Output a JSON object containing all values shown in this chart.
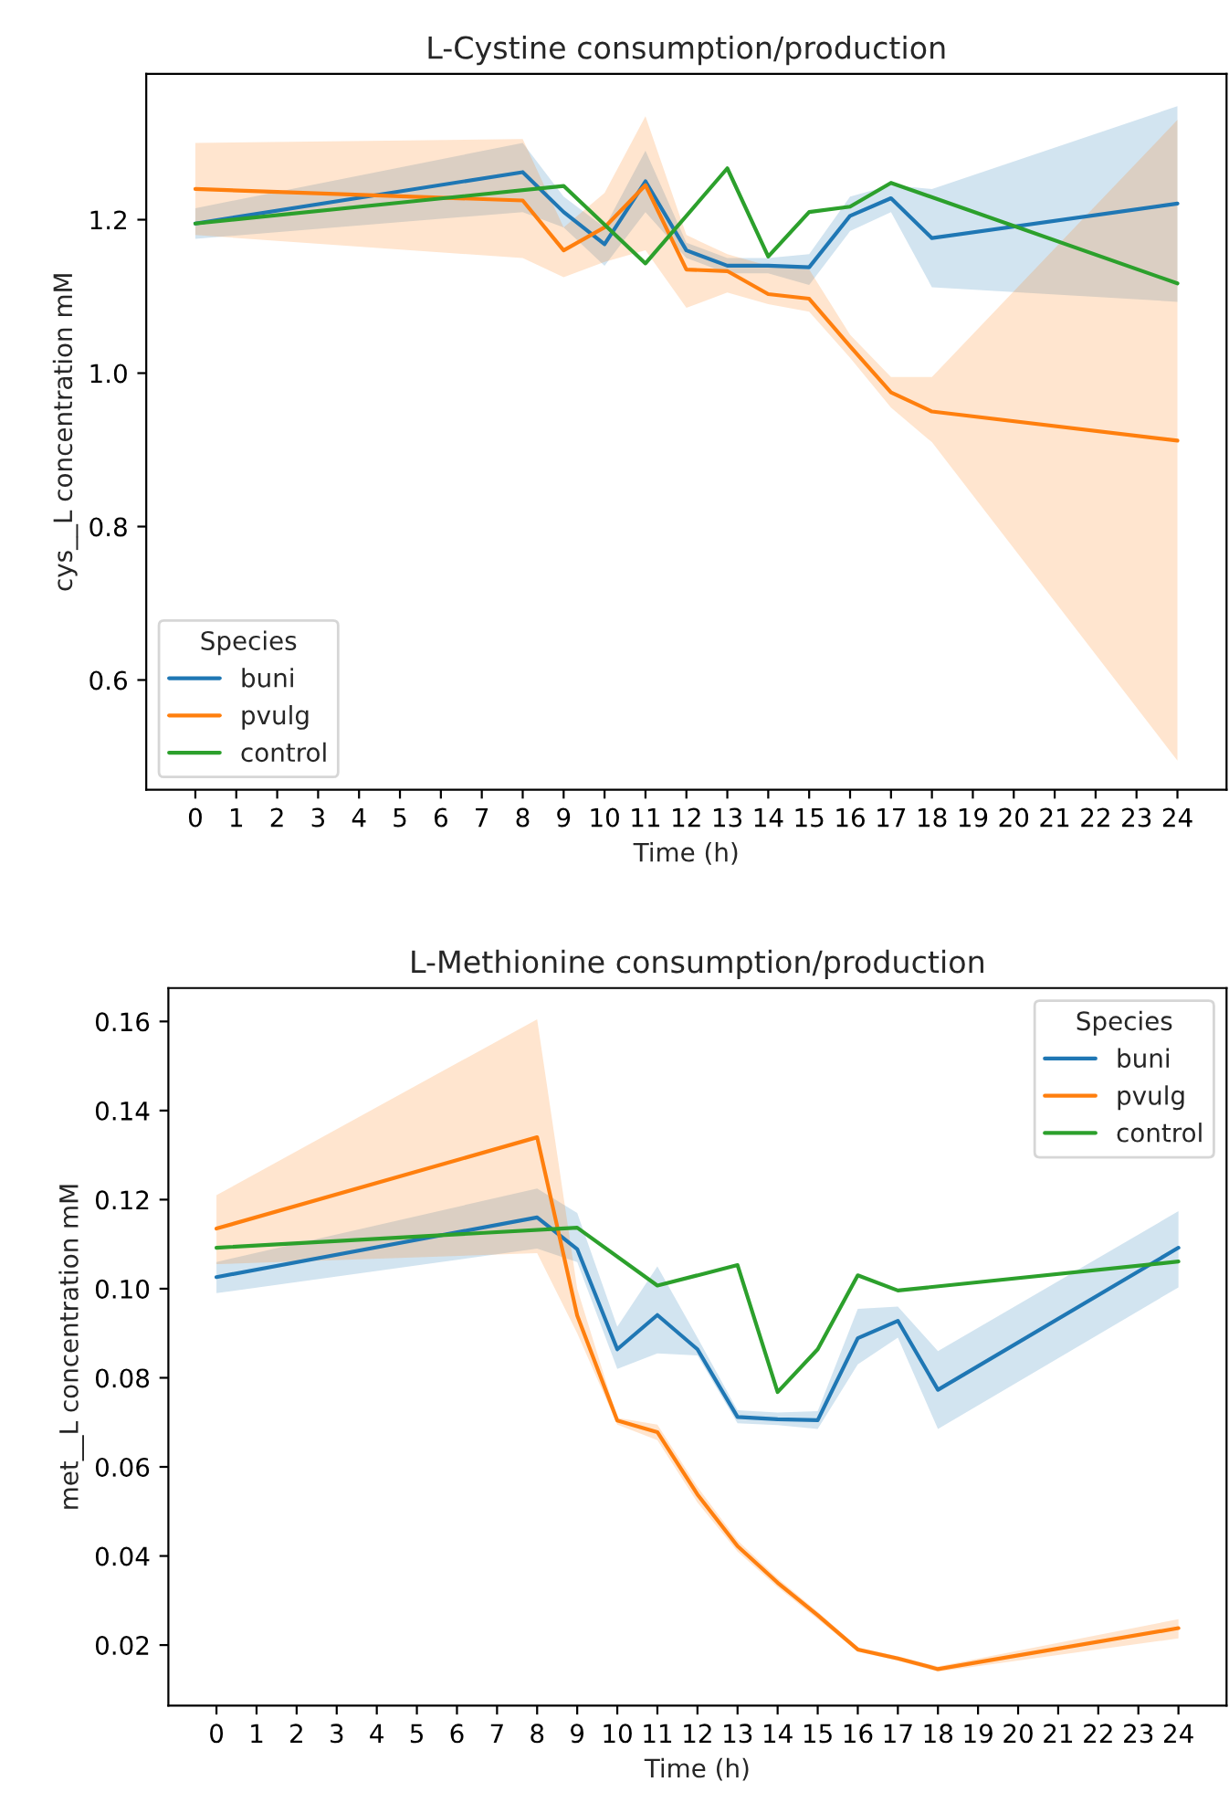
{
  "chart_data": [
    {
      "type": "line",
      "title": "L-Cystine consumption/production",
      "xlabel": "Time (h)",
      "ylabel": "cys__L concentration mM",
      "legend_title": "Species",
      "legend": "bottom left",
      "grid": false,
      "line_style": "solid",
      "xlim": [
        -1.2,
        25.2
      ],
      "xticks": [
        0,
        1,
        2,
        3,
        4,
        5,
        6,
        7,
        8,
        9,
        10,
        11,
        12,
        13,
        14,
        15,
        16,
        17,
        18,
        19,
        20,
        21,
        22,
        23,
        24
      ],
      "ylim": [
        0.457,
        1.39
      ],
      "yticks": [
        0.6,
        0.8,
        {
          "value": 1,
          "label": "1.0"
        },
        1.2
      ],
      "series": [
        {
          "name": "buni",
          "color": "#1f77b4",
          "x": [
            0,
            8,
            9,
            10,
            11,
            12,
            13,
            14,
            15,
            16,
            17,
            18,
            24
          ],
          "values": [
            1.195,
            1.262,
            1.21,
            1.168,
            1.25,
            1.16,
            1.14,
            1.14,
            1.138,
            1.205,
            1.228,
            1.176,
            1.221
          ],
          "lower": [
            1.175,
            1.21,
            1.19,
            1.14,
            1.21,
            1.15,
            1.13,
            1.13,
            1.115,
            1.185,
            1.21,
            1.112,
            1.093
          ],
          "upper": [
            1.215,
            1.3,
            1.23,
            1.19,
            1.29,
            1.17,
            1.15,
            1.15,
            1.155,
            1.23,
            1.245,
            1.24,
            1.348
          ]
        },
        {
          "name": "pvulg",
          "color": "#ff7f0e",
          "x": [
            0,
            8,
            9,
            10,
            11,
            12,
            13,
            14,
            15,
            16,
            17,
            18,
            24
          ],
          "values": [
            1.24,
            1.225,
            1.16,
            1.19,
            1.245,
            1.135,
            1.133,
            1.103,
            1.097,
            1.035,
            0.975,
            0.95,
            0.912
          ],
          "lower": [
            1.18,
            1.15,
            1.125,
            1.145,
            1.16,
            1.085,
            1.105,
            1.09,
            1.08,
            1.02,
            0.955,
            0.91,
            0.495
          ],
          "upper": [
            1.3,
            1.305,
            1.19,
            1.235,
            1.335,
            1.18,
            1.155,
            1.14,
            1.135,
            1.05,
            0.995,
            0.995,
            1.33
          ]
        },
        {
          "name": "control",
          "color": "#2ca02c",
          "x": [
            0,
            9,
            11,
            13,
            14,
            15,
            16,
            17,
            24
          ],
          "values": [
            1.195,
            1.244,
            1.143,
            1.267,
            1.152,
            1.21,
            1.217,
            1.248,
            1.117
          ]
        }
      ]
    },
    {
      "type": "line",
      "title": "L-Methionine consumption/production",
      "xlabel": "Time (h)",
      "ylabel": "met__L concentration mM",
      "legend_title": "Species",
      "legend": "top right",
      "grid": false,
      "line_style": "solid",
      "xlim": [
        -1.2,
        25.2
      ],
      "xticks": [
        0,
        1,
        2,
        3,
        4,
        5,
        6,
        7,
        8,
        9,
        10,
        11,
        12,
        13,
        14,
        15,
        16,
        17,
        18,
        19,
        20,
        21,
        22,
        23,
        24
      ],
      "ylim": [
        0.0064,
        0.1675
      ],
      "yticks": [
        0.02,
        0.04,
        0.06,
        0.08,
        {
          "value": 0.1,
          "label": "0.10"
        },
        0.12,
        0.14,
        0.16
      ],
      "series": [
        {
          "name": "buni",
          "color": "#1f77b4",
          "x": [
            0,
            8,
            9,
            10,
            11,
            12,
            13,
            14,
            15,
            16,
            17,
            18,
            24
          ],
          "values": [
            0.1026,
            0.116,
            0.1089,
            0.0864,
            0.0941,
            0.0864,
            0.0712,
            0.0707,
            0.0705,
            0.0889,
            0.0928,
            0.0773,
            0.1092
          ],
          "lower": [
            0.099,
            0.109,
            0.106,
            0.082,
            0.0855,
            0.085,
            0.0698,
            0.0694,
            0.0685,
            0.083,
            0.089,
            0.0685,
            0.1003
          ],
          "upper": [
            0.106,
            0.1225,
            0.117,
            0.0915,
            0.105,
            0.089,
            0.0727,
            0.0722,
            0.0725,
            0.0955,
            0.096,
            0.086,
            0.1174
          ]
        },
        {
          "name": "pvulg",
          "color": "#ff7f0e",
          "x": [
            0,
            8,
            9,
            10,
            11,
            12,
            13,
            14,
            15,
            16,
            17,
            18,
            24
          ],
          "values": [
            0.1135,
            0.134,
            0.094,
            0.0704,
            0.0678,
            0.0538,
            0.0422,
            0.034,
            0.0267,
            0.019,
            0.017,
            0.0146,
            0.0238
          ],
          "lower": [
            0.1055,
            0.108,
            0.09,
            0.0695,
            0.066,
            0.052,
            0.041,
            0.033,
            0.0258,
            0.0185,
            0.0165,
            0.014,
            0.0215
          ],
          "upper": [
            0.121,
            0.1605,
            0.1,
            0.071,
            0.0695,
            0.0555,
            0.0435,
            0.035,
            0.0275,
            0.0195,
            0.0175,
            0.0152,
            0.0258
          ]
        },
        {
          "name": "control",
          "color": "#2ca02c",
          "x": [
            0,
            9,
            11,
            13,
            14,
            15,
            16,
            17,
            24
          ],
          "values": [
            0.1092,
            0.1137,
            0.1007,
            0.1053,
            0.0768,
            0.0864,
            0.103,
            0.0996,
            0.1061
          ]
        }
      ]
    }
  ]
}
